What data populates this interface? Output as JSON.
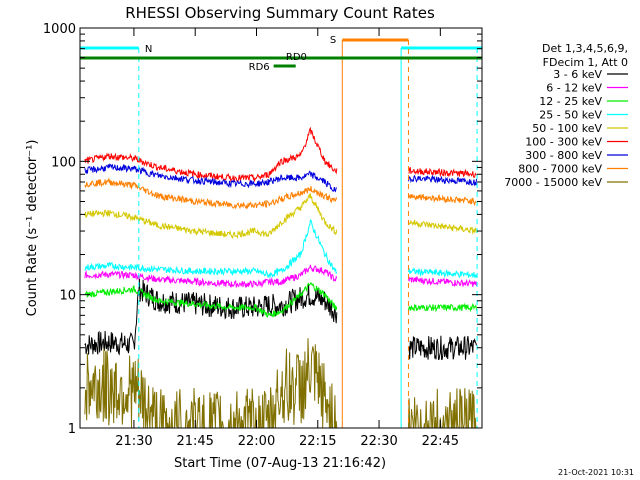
{
  "chart_data": {
    "type": "line",
    "title": "RHESSI Observing Summary Count Rates",
    "xlabel": "Start Time (07-Aug-13 21:16:42)",
    "ylabel": "Count Rate (s⁻¹ detector⁻¹)",
    "yscale": "log",
    "ylim": [
      1,
      1000
    ],
    "xlim_minutes": [
      21.28,
      22.92
    ],
    "x_ticks": [
      "21:30",
      "21:45",
      "22:00",
      "22:15",
      "22:30",
      "22:45"
    ],
    "x_tick_minutes": [
      21.5,
      21.75,
      22.0,
      22.25,
      22.5,
      22.75
    ],
    "y_ticks": [
      "1",
      "10",
      "100",
      "1000"
    ],
    "y_tick_values": [
      1,
      10,
      100,
      1000
    ],
    "legend_header": [
      "Det 1,3,4,5,6,9,",
      "FDecim 1, Att 0"
    ],
    "legend_position": "right",
    "footer_date": "21-Oct-2021 10:31",
    "annotations": {
      "night_marker_label": "N",
      "saa_marker_label": "S",
      "rd0_label": "RD0",
      "rd6_label": "RD6"
    },
    "series": [
      {
        "name": "3 - 6 keV",
        "color": "#000000",
        "points": [
          [
            21.3,
            4.2
          ],
          [
            21.4,
            4.4
          ],
          [
            21.5,
            4.2
          ],
          [
            21.52,
            11
          ],
          [
            21.6,
            9
          ],
          [
            21.75,
            8.5
          ],
          [
            21.9,
            8
          ],
          [
            22.0,
            8
          ],
          [
            22.05,
            8.3
          ],
          [
            22.1,
            8.3
          ],
          [
            22.18,
            9.5
          ],
          [
            22.22,
            10
          ],
          [
            22.28,
            9
          ],
          [
            22.32,
            7.5
          ],
          [
            22.62,
            4
          ],
          [
            22.9,
            4
          ]
        ]
      },
      {
        "name": "6 - 12 keV",
        "color": "#ff00ff",
        "points": [
          [
            21.3,
            14
          ],
          [
            21.4,
            14.2
          ],
          [
            21.5,
            14
          ],
          [
            21.6,
            13
          ],
          [
            21.75,
            12.5
          ],
          [
            21.9,
            12
          ],
          [
            22.0,
            12
          ],
          [
            22.05,
            12.5
          ],
          [
            22.1,
            12.5
          ],
          [
            22.18,
            14
          ],
          [
            22.22,
            16
          ],
          [
            22.28,
            15
          ],
          [
            22.32,
            13
          ],
          [
            22.62,
            13
          ],
          [
            22.9,
            12
          ]
        ]
      },
      {
        "name": "12 - 25 keV",
        "color": "#00ee00",
        "points": [
          [
            21.3,
            10
          ],
          [
            21.4,
            10.5
          ],
          [
            21.5,
            11
          ],
          [
            21.6,
            9
          ],
          [
            21.75,
            8.5
          ],
          [
            21.9,
            8
          ],
          [
            22.0,
            8
          ],
          [
            22.05,
            7
          ],
          [
            22.1,
            7.5
          ],
          [
            22.18,
            10
          ],
          [
            22.22,
            12
          ],
          [
            22.28,
            10
          ],
          [
            22.32,
            8
          ],
          [
            22.62,
            8
          ],
          [
            22.9,
            8
          ]
        ]
      },
      {
        "name": "25 - 50 keV",
        "color": "#00ffff",
        "points": [
          [
            21.3,
            16
          ],
          [
            21.4,
            16.5
          ],
          [
            21.5,
            16
          ],
          [
            21.6,
            15.5
          ],
          [
            21.75,
            15
          ],
          [
            21.9,
            15
          ],
          [
            22.0,
            15
          ],
          [
            22.05,
            14
          ],
          [
            22.1,
            15
          ],
          [
            22.18,
            20
          ],
          [
            22.22,
            35
          ],
          [
            22.28,
            20
          ],
          [
            22.32,
            15
          ],
          [
            22.62,
            15
          ],
          [
            22.9,
            14
          ]
        ]
      },
      {
        "name": "50 - 100 keV",
        "color": "#d4c800",
        "points": [
          [
            21.3,
            40
          ],
          [
            21.4,
            41
          ],
          [
            21.5,
            38
          ],
          [
            21.6,
            33
          ],
          [
            21.75,
            30
          ],
          [
            21.9,
            28
          ],
          [
            22.0,
            30
          ],
          [
            22.05,
            28
          ],
          [
            22.1,
            35
          ],
          [
            22.18,
            45
          ],
          [
            22.22,
            55
          ],
          [
            22.28,
            35
          ],
          [
            22.32,
            30
          ],
          [
            22.62,
            35
          ],
          [
            22.9,
            30
          ]
        ]
      },
      {
        "name": "100 - 300 keV",
        "color": "#ff0000",
        "points": [
          [
            21.3,
            100
          ],
          [
            21.4,
            110
          ],
          [
            21.5,
            105
          ],
          [
            21.6,
            90
          ],
          [
            21.75,
            80
          ],
          [
            21.9,
            75
          ],
          [
            22.0,
            75
          ],
          [
            22.05,
            80
          ],
          [
            22.1,
            100
          ],
          [
            22.18,
            110
          ],
          [
            22.22,
            170
          ],
          [
            22.28,
            100
          ],
          [
            22.32,
            85
          ],
          [
            22.62,
            85
          ],
          [
            22.9,
            80
          ]
        ]
      },
      {
        "name": "300 - 800 keV",
        "color": "#0000dd",
        "points": [
          [
            21.3,
            85
          ],
          [
            21.4,
            90
          ],
          [
            21.5,
            88
          ],
          [
            21.6,
            78
          ],
          [
            21.75,
            72
          ],
          [
            21.9,
            68
          ],
          [
            22.0,
            68
          ],
          [
            22.05,
            70
          ],
          [
            22.1,
            75
          ],
          [
            22.18,
            75
          ],
          [
            22.22,
            80
          ],
          [
            22.28,
            70
          ],
          [
            22.32,
            60
          ],
          [
            22.62,
            75
          ],
          [
            22.9,
            70
          ]
        ]
      },
      {
        "name": "800 - 7000 keV",
        "color": "#ff8000",
        "points": [
          [
            21.3,
            68
          ],
          [
            21.4,
            70
          ],
          [
            21.5,
            66
          ],
          [
            21.6,
            55
          ],
          [
            21.75,
            50
          ],
          [
            21.9,
            47
          ],
          [
            22.0,
            47
          ],
          [
            22.05,
            48
          ],
          [
            22.1,
            52
          ],
          [
            22.18,
            58
          ],
          [
            22.22,
            62
          ],
          [
            22.28,
            55
          ],
          [
            22.32,
            50
          ],
          [
            22.62,
            55
          ],
          [
            22.9,
            50
          ]
        ]
      },
      {
        "name": "7000 - 15000 keV",
        "color": "#807000",
        "points": [
          [
            21.3,
            2
          ],
          [
            21.4,
            2
          ],
          [
            21.5,
            1.9
          ],
          [
            21.6,
            1
          ],
          [
            21.75,
            1
          ],
          [
            21.9,
            1
          ],
          [
            22.0,
            1
          ],
          [
            22.05,
            1
          ],
          [
            22.1,
            2
          ],
          [
            22.18,
            2
          ],
          [
            22.22,
            2.6
          ],
          [
            22.28,
            1.6
          ],
          [
            22.32,
            1
          ],
          [
            22.62,
            1
          ],
          [
            22.9,
            1
          ]
        ]
      }
    ]
  }
}
